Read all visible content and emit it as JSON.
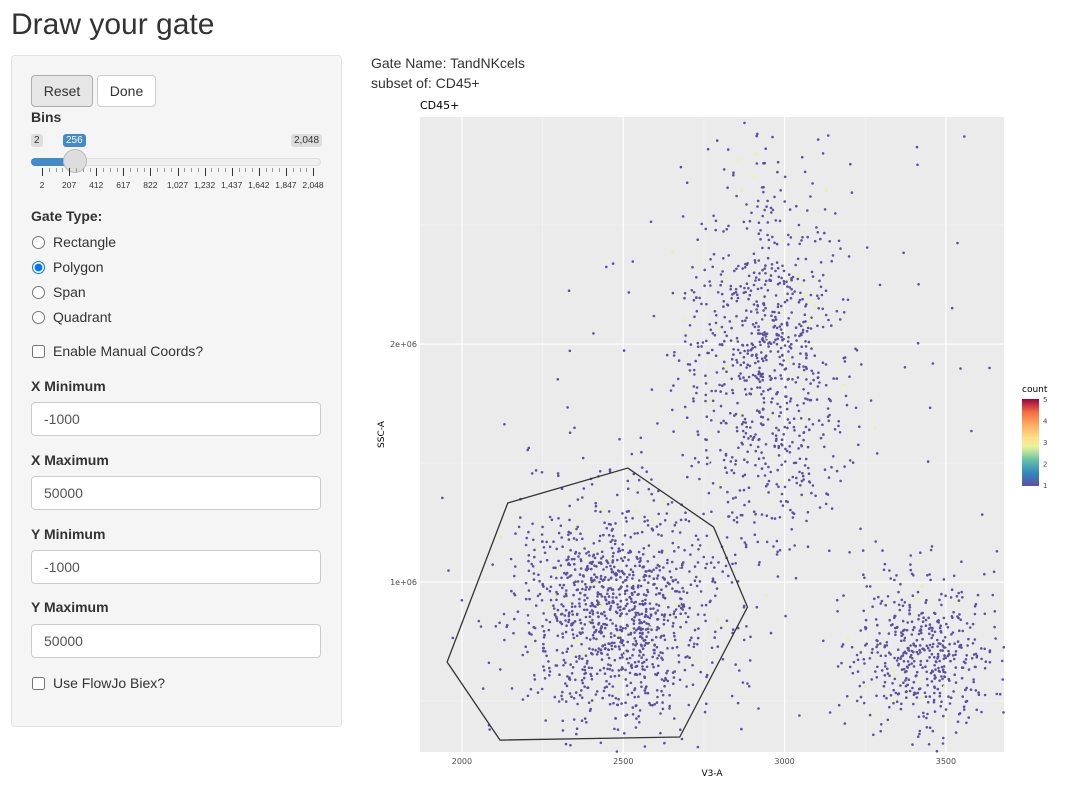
{
  "page_title": "Draw your gate",
  "buttons": {
    "reset": "Reset",
    "done": "Done"
  },
  "bins": {
    "label": "Bins",
    "min": "2",
    "max": "2,048",
    "value": "256",
    "value_num": 256,
    "min_num": 2,
    "max_num": 2048,
    "ticks": [
      "2",
      "207",
      "412",
      "617",
      "822",
      "1,027",
      "1,232",
      "1,437",
      "1,642",
      "1,847",
      "2,048"
    ]
  },
  "gate_type": {
    "label": "Gate Type:",
    "options": [
      "Rectangle",
      "Polygon",
      "Span",
      "Quadrant"
    ],
    "selected": "Polygon"
  },
  "manual_coords": {
    "label": "Enable Manual Coords?",
    "checked": false
  },
  "fields": [
    {
      "label": "X Minimum",
      "value": "-1000"
    },
    {
      "label": "X Maximum",
      "value": "50000"
    },
    {
      "label": "Y Minimum",
      "value": "-1000"
    },
    {
      "label": "Y Maximum",
      "value": "50000"
    }
  ],
  "flowjo": {
    "label": "Use FlowJo Biex?",
    "checked": false
  },
  "gate_info": {
    "name": "Gate Name: TandNKcels",
    "subset": "subset of: CD45+"
  },
  "chart_data": {
    "type": "scatter",
    "title": "CD45+",
    "xlabel": "V3-A",
    "ylabel": "SSC-A",
    "xlim": [
      1870,
      3680
    ],
    "ylim": [
      286000,
      2954000
    ],
    "xticks": [
      {
        "v": 2000,
        "l": "2000"
      },
      {
        "v": 2500,
        "l": "2500"
      },
      {
        "v": 3000,
        "l": "3000"
      },
      {
        "v": 3500,
        "l": "3500"
      }
    ],
    "yticks": [
      {
        "v": 1000000,
        "l": "1e+06"
      },
      {
        "v": 2000000,
        "l": "2e+06"
      }
    ],
    "clusters": [
      {
        "cx": 2480,
        "cy": 880000,
        "sx": 150,
        "sy": 240000,
        "n": 1200
      },
      {
        "cx": 2940,
        "cy": 1950000,
        "sx": 120,
        "sy": 380000,
        "n": 850
      },
      {
        "cx": 3430,
        "cy": 700000,
        "sx": 110,
        "sy": 160000,
        "n": 500
      },
      {
        "cx": 2900,
        "cy": 1500000,
        "sx": 400,
        "sy": 700000,
        "n": 150
      }
    ],
    "point_color": "#5e4fa2",
    "legend": {
      "title": "count",
      "ticks": [
        "1",
        "2",
        "3",
        "4",
        "5"
      ],
      "position": "right"
    },
    "gate_polygon": [
      [
        2142,
        1332000
      ],
      [
        2514,
        1479000
      ],
      [
        2780,
        1231000
      ],
      [
        2885,
        895000
      ],
      [
        2675,
        349000
      ],
      [
        2118,
        336000
      ],
      [
        1954,
        664000
      ]
    ]
  }
}
